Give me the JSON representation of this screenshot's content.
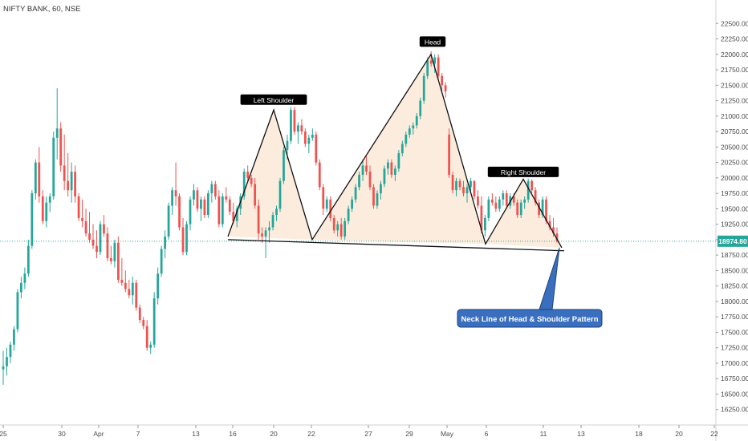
{
  "symbol_label": "NIFTY BANK, 60, NSE",
  "colors": {
    "up": "#26a69a",
    "down": "#ef5350",
    "pattern_fill": "#fbe9d7",
    "price_line": "#26a69a",
    "callout_bg": "#3a6fbf",
    "label_bg": "#000000",
    "axis_text": "#4a4a4a"
  },
  "chart_data": {
    "type": "candlestick",
    "title": "NIFTY BANK, 60, NSE",
    "ylim": [
      16000,
      22750
    ],
    "y_ticks": [
      "16250.00",
      "16500.00",
      "16750.00",
      "17000.00",
      "17250.00",
      "17500.00",
      "17750.00",
      "18000.00",
      "18250.00",
      "18500.00",
      "18750.00",
      "19000.00",
      "19250.00",
      "19500.00",
      "19750.00",
      "20000.00",
      "20250.00",
      "20500.00",
      "20750.00",
      "21000.00",
      "21250.00",
      "21500.00",
      "21750.00",
      "22000.00",
      "22250.00",
      "22500.00"
    ],
    "x_ticks": [
      "25",
      "30",
      "Apr",
      "7",
      "13",
      "16",
      "20",
      "22",
      "27",
      "29",
      "May",
      "6",
      "11",
      "13",
      "18",
      "20",
      "22"
    ],
    "current_price": "18974.80",
    "pattern_points": {
      "left_shoulder_start": {
        "date": "15 Apr",
        "value": 19050
      },
      "left_shoulder": {
        "date": "20 Apr",
        "value": 21100
      },
      "neck_left": {
        "date": "22 Apr",
        "value": 19000
      },
      "head": {
        "date": "30 Apr",
        "value": 22000
      },
      "neck_mid": {
        "date": "6 May",
        "value": 18930
      },
      "right_shoulder": {
        "date": "9 May",
        "value": 19980
      },
      "neck_right": {
        "date": "12 May",
        "value": 18870
      }
    },
    "annotations": [
      {
        "text": "Left Shoulder",
        "value": 21260
      },
      {
        "text": "Head",
        "value": 22200
      },
      {
        "text": "Right Shoulder",
        "value": 20090
      }
    ],
    "callout": "Neck Line of Head & Shoulder Pattern",
    "ohlc": [
      [
        16900,
        17200,
        16650,
        16950
      ],
      [
        16950,
        17250,
        16800,
        17100
      ],
      [
        17100,
        17350,
        17000,
        17300
      ],
      [
        17300,
        17600,
        17200,
        17550
      ],
      [
        17550,
        18200,
        17500,
        18150
      ],
      [
        18150,
        18400,
        18050,
        18300
      ],
      [
        18300,
        18550,
        18200,
        18450
      ],
      [
        18450,
        19000,
        18400,
        18900
      ],
      [
        18900,
        19800,
        18850,
        19750
      ],
      [
        19750,
        20300,
        19650,
        20250
      ],
      [
        20250,
        20500,
        19600,
        19700
      ],
      [
        19700,
        19800,
        19250,
        19300
      ],
      [
        19300,
        19700,
        19200,
        19600
      ],
      [
        19600,
        19750,
        19450,
        19700
      ],
      [
        19700,
        20750,
        19650,
        20650
      ],
      [
        20650,
        21450,
        20300,
        20800
      ],
      [
        20800,
        20900,
        20100,
        20200
      ],
      [
        20200,
        20700,
        19800,
        19950
      ],
      [
        19950,
        20400,
        19700,
        19800
      ],
      [
        19800,
        20250,
        19600,
        20100
      ],
      [
        20100,
        20200,
        19600,
        19700
      ],
      [
        19700,
        19750,
        19300,
        19350
      ],
      [
        19350,
        19650,
        19200,
        19300
      ],
      [
        19300,
        19500,
        19050,
        19100
      ],
      [
        19100,
        19450,
        18950,
        19000
      ],
      [
        19000,
        19250,
        18850,
        18900
      ],
      [
        18900,
        19150,
        18700,
        18800
      ],
      [
        18800,
        19300,
        18750,
        19250
      ],
      [
        19250,
        19400,
        19050,
        19100
      ],
      [
        19100,
        19200,
        18650,
        18700
      ],
      [
        18700,
        18900,
        18600,
        18650
      ],
      [
        18650,
        19000,
        18550,
        18950
      ],
      [
        18950,
        19050,
        18300,
        18350
      ],
      [
        18350,
        18700,
        18250,
        18300
      ],
      [
        18300,
        18500,
        18150,
        18200
      ],
      [
        18200,
        18350,
        18050,
        18100
      ],
      [
        18100,
        18400,
        17950,
        18300
      ],
      [
        18300,
        18350,
        17850,
        17900
      ],
      [
        17900,
        17950,
        17650,
        17700
      ],
      [
        17700,
        17750,
        17550,
        17600
      ],
      [
        17600,
        17700,
        17200,
        17250
      ],
      [
        17250,
        17350,
        17150,
        17300
      ],
      [
        17300,
        18150,
        17250,
        18050
      ],
      [
        18050,
        18550,
        17950,
        18450
      ],
      [
        18450,
        18900,
        18400,
        18850
      ],
      [
        18850,
        19150,
        18700,
        19050
      ],
      [
        19050,
        19600,
        19000,
        19550
      ],
      [
        19550,
        19850,
        19400,
        19800
      ],
      [
        19800,
        20250,
        19550,
        19700
      ],
      [
        19700,
        19750,
        19150,
        19200
      ],
      [
        19200,
        19350,
        18750,
        18800
      ],
      [
        18800,
        19300,
        18750,
        19250
      ],
      [
        19250,
        19700,
        19150,
        19650
      ],
      [
        19650,
        19900,
        19550,
        19800
      ],
      [
        19800,
        19850,
        19450,
        19500
      ],
      [
        19500,
        19700,
        19300,
        19650
      ],
      [
        19650,
        19700,
        19350,
        19400
      ],
      [
        19400,
        19800,
        19350,
        19750
      ],
      [
        19750,
        19950,
        19600,
        19900
      ],
      [
        19900,
        19950,
        19650,
        19700
      ],
      [
        19700,
        19800,
        19200,
        19250
      ],
      [
        19250,
        19750,
        19200,
        19700
      ],
      [
        19700,
        19850,
        19600,
        19650
      ],
      [
        19650,
        19700,
        19400,
        19450
      ],
      [
        19450,
        19600,
        19250,
        19300
      ],
      [
        19300,
        19550,
        19200,
        19500
      ],
      [
        19500,
        19750,
        19400,
        19700
      ],
      [
        19700,
        20150,
        19650,
        20100
      ],
      [
        20100,
        20200,
        19950,
        20000
      ],
      [
        20000,
        20050,
        19850,
        19900
      ],
      [
        19900,
        20000,
        19500,
        19550
      ],
      [
        19550,
        19650,
        19000,
        19100
      ],
      [
        19100,
        19200,
        18950,
        19050
      ],
      [
        19050,
        19200,
        18700,
        19150
      ],
      [
        19150,
        19300,
        18950,
        19200
      ],
      [
        19200,
        19450,
        19150,
        19400
      ],
      [
        19400,
        19550,
        19300,
        19500
      ],
      [
        19500,
        20000,
        19450,
        19950
      ],
      [
        19950,
        20500,
        19900,
        20450
      ],
      [
        20450,
        20700,
        20300,
        20600
      ],
      [
        20600,
        21150,
        20550,
        21100
      ],
      [
        21100,
        21150,
        20700,
        20750
      ],
      [
        20750,
        20900,
        20550,
        20850
      ],
      [
        20850,
        20950,
        20700,
        20750
      ],
      [
        20750,
        20800,
        20500,
        20550
      ],
      [
        20550,
        20700,
        20400,
        20650
      ],
      [
        20650,
        20800,
        20600,
        20700
      ],
      [
        20700,
        20750,
        20200,
        20250
      ],
      [
        20250,
        20300,
        19800,
        19850
      ],
      [
        19850,
        19900,
        19400,
        19500
      ],
      [
        19500,
        19700,
        19450,
        19650
      ],
      [
        19650,
        19700,
        19300,
        19350
      ],
      [
        19350,
        19400,
        19100,
        19150
      ],
      [
        19150,
        19300,
        19050,
        19250
      ],
      [
        19250,
        19350,
        19000,
        19050
      ],
      [
        19050,
        19350,
        19000,
        19300
      ],
      [
        19300,
        19550,
        19250,
        19500
      ],
      [
        19500,
        19700,
        19450,
        19650
      ],
      [
        19650,
        19900,
        19600,
        19850
      ],
      [
        19850,
        20100,
        19800,
        20050
      ],
      [
        20050,
        20300,
        19950,
        20200
      ],
      [
        20200,
        20350,
        20050,
        20100
      ],
      [
        20100,
        20200,
        19800,
        19850
      ],
      [
        19850,
        19900,
        19500,
        19550
      ],
      [
        19550,
        19800,
        19500,
        19750
      ],
      [
        19750,
        19950,
        19650,
        19900
      ],
      [
        19900,
        20200,
        19850,
        20150
      ],
      [
        20150,
        20300,
        20050,
        20250
      ],
      [
        20250,
        20300,
        20000,
        20050
      ],
      [
        20050,
        20200,
        19950,
        20150
      ],
      [
        20150,
        20450,
        20100,
        20400
      ],
      [
        20400,
        20600,
        20350,
        20550
      ],
      [
        20550,
        20750,
        20500,
        20700
      ],
      [
        20700,
        20850,
        20650,
        20800
      ],
      [
        20800,
        20900,
        20700,
        20850
      ],
      [
        20850,
        21050,
        20800,
        21000
      ],
      [
        21000,
        21300,
        20950,
        21250
      ],
      [
        21250,
        21700,
        21200,
        21650
      ],
      [
        21650,
        21950,
        21600,
        21900
      ],
      [
        21900,
        22050,
        21800,
        21850
      ],
      [
        21850,
        22000,
        21700,
        21950
      ],
      [
        21950,
        22000,
        21600,
        21650
      ],
      [
        21650,
        21700,
        21400,
        21500
      ],
      [
        21500,
        21550,
        21300,
        21400
      ],
      [
        20700,
        20800,
        20000,
        20050
      ],
      [
        20050,
        20100,
        19750,
        19800
      ],
      [
        19800,
        20000,
        19700,
        19950
      ],
      [
        19950,
        19990,
        19800,
        19850
      ],
      [
        19850,
        19950,
        19700,
        19750
      ],
      [
        19750,
        19900,
        19600,
        19850
      ],
      [
        19850,
        20000,
        19750,
        19950
      ],
      [
        19950,
        19960,
        19650,
        19700
      ],
      [
        19700,
        19800,
        19500,
        19550
      ],
      [
        19550,
        19700,
        19100,
        19150
      ],
      [
        19150,
        19400,
        19050,
        19350
      ],
      [
        19350,
        19700,
        19300,
        19650
      ],
      [
        19650,
        19750,
        19550,
        19600
      ],
      [
        19600,
        19700,
        19450,
        19500
      ],
      [
        19500,
        19700,
        19450,
        19650
      ],
      [
        19650,
        19800,
        19550,
        19750
      ],
      [
        19750,
        19800,
        19500,
        19550
      ],
      [
        19550,
        19750,
        19500,
        19700
      ],
      [
        19700,
        19750,
        19550,
        19600
      ],
      [
        19600,
        19650,
        19350,
        19400
      ],
      [
        19400,
        19650,
        19350,
        19600
      ],
      [
        19600,
        19700,
        19500,
        19650
      ],
      [
        19650,
        19990,
        19600,
        19950
      ],
      [
        19950,
        19980,
        19750,
        19800
      ],
      [
        19800,
        19850,
        19550,
        19600
      ],
      [
        19600,
        19650,
        19350,
        19400
      ],
      [
        19400,
        19700,
        19350,
        19650
      ],
      [
        19650,
        19700,
        19250,
        19300
      ],
      [
        19300,
        19400,
        19150,
        19200
      ],
      [
        19200,
        19350,
        19050,
        19100
      ],
      [
        19100,
        19200,
        18950,
        18980
      ]
    ]
  }
}
